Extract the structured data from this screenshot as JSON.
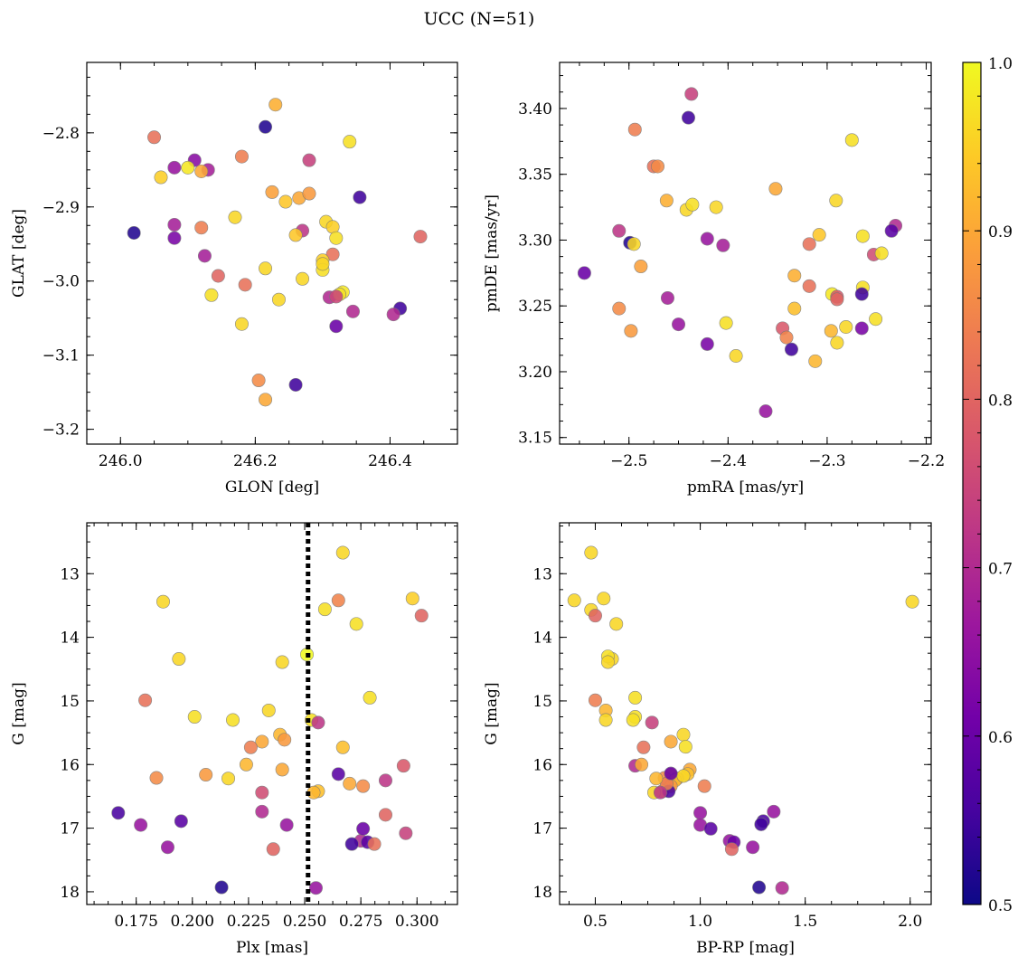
{
  "figure": {
    "title": "UCC (N=51)"
  },
  "colorbar": {
    "min": 0.5,
    "max": 1.0,
    "ticks": [
      0.5,
      0.6,
      0.7,
      0.8,
      0.9,
      1.0
    ],
    "tick_labels": [
      "0.5",
      "0.6",
      "0.7",
      "0.8",
      "0.9",
      "1.0"
    ],
    "colormap": "plasma"
  },
  "colors": {
    "plasma_stops": [
      "#0d0887",
      "#46039f",
      "#7201a8",
      "#9c179e",
      "#bd3786",
      "#d8576b",
      "#ed7953",
      "#fb9f3a",
      "#fdca26",
      "#f0f921"
    ]
  },
  "chart_data": [
    {
      "type": "scatter",
      "id": "sky",
      "xlabel": "GLON [deg]",
      "ylabel": "GLAT [deg]",
      "xlim": [
        245.95,
        246.5
      ],
      "ylim": [
        -3.22,
        -2.705
      ],
      "xticks": [
        246.0,
        246.2,
        246.4
      ],
      "xtick_labels": [
        "246.0",
        "246.2",
        "246.4"
      ],
      "yticks": [
        -2.8,
        -2.9,
        -3.0,
        -3.1,
        -3.2
      ],
      "ytick_labels": [
        "−2.8",
        "−2.9",
        "−3.0",
        "−3.1",
        "−3.2"
      ],
      "x": [
        246.23,
        246.215,
        246.05,
        246.34,
        246.08,
        246.11,
        246.13,
        246.06,
        246.1,
        246.12,
        246.18,
        246.28,
        246.225,
        246.245,
        246.265,
        246.28,
        246.355,
        246.17,
        246.02,
        246.08,
        246.12,
        246.08,
        246.305,
        246.315,
        246.27,
        246.32,
        246.26,
        246.315,
        246.3,
        246.215,
        246.125,
        246.145,
        246.135,
        246.185,
        246.3,
        246.27,
        246.235,
        246.31,
        246.33,
        246.325,
        246.345,
        246.32,
        246.415,
        246.405,
        246.445,
        246.18,
        246.205,
        246.215,
        246.26,
        246.3,
        246.32
      ],
      "y": [
        -2.762,
        -2.792,
        -2.806,
        -2.812,
        -2.847,
        -2.837,
        -2.85,
        -2.86,
        -2.847,
        -2.852,
        -2.832,
        -2.837,
        -2.88,
        -2.893,
        -2.888,
        -2.882,
        -2.887,
        -2.914,
        -2.935,
        -2.924,
        -2.928,
        -2.942,
        -2.92,
        -2.927,
        -2.932,
        -2.942,
        -2.938,
        -2.964,
        -2.972,
        -2.983,
        -2.966,
        -2.993,
        -3.019,
        -3.005,
        -2.985,
        -2.997,
        -3.025,
        -3.022,
        -3.015,
        -3.018,
        -3.041,
        -3.061,
        -3.037,
        -3.045,
        -2.94,
        -3.058,
        -3.134,
        -3.16,
        -3.14,
        -2.977,
        -3.021
      ],
      "c": [
        0.91,
        0.52,
        0.82,
        0.97,
        0.66,
        0.64,
        0.68,
        0.95,
        0.98,
        0.9,
        0.84,
        0.74,
        0.89,
        0.94,
        0.9,
        0.88,
        0.55,
        0.96,
        0.52,
        0.68,
        0.84,
        0.62,
        0.96,
        0.95,
        0.72,
        0.97,
        0.94,
        0.82,
        0.95,
        0.96,
        0.68,
        0.8,
        0.97,
        0.82,
        0.97,
        0.96,
        0.96,
        0.7,
        0.98,
        0.97,
        0.7,
        0.6,
        0.55,
        0.7,
        0.8,
        0.96,
        0.86,
        0.9,
        0.55,
        0.96,
        0.75
      ]
    },
    {
      "type": "scatter",
      "id": "pm",
      "xlabel": "pmRA [mas/yr]",
      "ylabel": "pmDE [mas/yr]",
      "xlim": [
        -2.57,
        -2.195
      ],
      "ylim": [
        3.145,
        3.435
      ],
      "xticks": [
        -2.5,
        -2.4,
        -2.3,
        -2.2
      ],
      "xtick_labels": [
        "−2.5",
        "−2.4",
        "−2.3",
        "−2.2"
      ],
      "yticks": [
        3.15,
        3.2,
        3.25,
        3.3,
        3.35,
        3.4
      ],
      "ytick_labels": [
        "3.15",
        "3.20",
        "3.25",
        "3.30",
        "3.35",
        "3.40"
      ],
      "x": [
        -2.437,
        -2.44,
        -2.494,
        -2.475,
        -2.471,
        -2.275,
        -2.352,
        -2.462,
        -2.442,
        -2.436,
        -2.412,
        -2.291,
        -2.51,
        -2.499,
        -2.495,
        -2.421,
        -2.405,
        -2.308,
        -2.264,
        -2.231,
        -2.235,
        -2.318,
        -2.264,
        -2.295,
        -2.253,
        -2.245,
        -2.488,
        -2.545,
        -2.333,
        -2.318,
        -2.29,
        -2.265,
        -2.51,
        -2.498,
        -2.461,
        -2.45,
        -2.402,
        -2.421,
        -2.392,
        -2.333,
        -2.345,
        -2.341,
        -2.336,
        -2.296,
        -2.281,
        -2.251,
        -2.29,
        -2.265,
        -2.362,
        -2.312,
        -2.29
      ],
      "y": [
        3.411,
        3.393,
        3.384,
        3.356,
        3.356,
        3.376,
        3.339,
        3.33,
        3.323,
        3.327,
        3.325,
        3.33,
        3.307,
        3.298,
        3.297,
        3.301,
        3.296,
        3.304,
        3.303,
        3.311,
        3.307,
        3.297,
        3.264,
        3.259,
        3.289,
        3.29,
        3.28,
        3.275,
        3.273,
        3.265,
        3.257,
        3.259,
        3.248,
        3.231,
        3.256,
        3.236,
        3.237,
        3.221,
        3.212,
        3.248,
        3.233,
        3.226,
        3.217,
        3.231,
        3.234,
        3.24,
        3.222,
        3.233,
        3.17,
        3.208,
        3.255
      ],
      "c": [
        0.74,
        0.55,
        0.84,
        0.82,
        0.86,
        0.97,
        0.9,
        0.91,
        0.96,
        0.97,
        0.96,
        0.96,
        0.72,
        0.52,
        0.96,
        0.66,
        0.68,
        0.94,
        0.97,
        0.7,
        0.58,
        0.82,
        0.97,
        0.98,
        0.76,
        0.97,
        0.89,
        0.6,
        0.91,
        0.82,
        0.78,
        0.55,
        0.86,
        0.88,
        0.68,
        0.66,
        0.97,
        0.62,
        0.96,
        0.93,
        0.78,
        0.85,
        0.55,
        0.92,
        0.96,
        0.97,
        0.96,
        0.62,
        0.66,
        0.92,
        0.8
      ]
    },
    {
      "type": "scatter",
      "id": "plx",
      "xlabel": "Plx [mas]",
      "ylabel": "G [mag]",
      "xlim": [
        0.153,
        0.318
      ],
      "ylim": [
        18.2,
        12.2
      ],
      "xticks": [
        0.175,
        0.2,
        0.225,
        0.25,
        0.275,
        0.3
      ],
      "xtick_labels": [
        "0.175",
        "0.200",
        "0.225",
        "0.250",
        "0.275",
        "0.300"
      ],
      "yticks": [
        13,
        14,
        15,
        16,
        17,
        18
      ],
      "ytick_labels": [
        "13",
        "14",
        "15",
        "16",
        "17",
        "18"
      ],
      "vline": 0.2515,
      "x": [
        0.267,
        0.298,
        0.187,
        0.265,
        0.259,
        0.302,
        0.273,
        0.194,
        0.24,
        0.251,
        0.179,
        0.279,
        0.201,
        0.218,
        0.234,
        0.239,
        0.253,
        0.256,
        0.231,
        0.241,
        0.226,
        0.267,
        0.184,
        0.206,
        0.216,
        0.224,
        0.24,
        0.265,
        0.27,
        0.276,
        0.286,
        0.294,
        0.256,
        0.254,
        0.167,
        0.177,
        0.195,
        0.189,
        0.231,
        0.242,
        0.236,
        0.213,
        0.255,
        0.286,
        0.295,
        0.275,
        0.271,
        0.278,
        0.281,
        0.276,
        0.231
      ],
      "y": [
        12.67,
        13.39,
        13.44,
        13.42,
        13.56,
        13.66,
        13.79,
        14.34,
        14.39,
        14.27,
        14.99,
        14.95,
        15.25,
        15.3,
        15.15,
        15.53,
        15.3,
        15.34,
        15.64,
        15.61,
        15.73,
        15.73,
        16.21,
        16.16,
        16.22,
        16.0,
        16.08,
        16.15,
        16.3,
        16.34,
        16.25,
        16.02,
        16.42,
        16.44,
        16.76,
        16.95,
        16.89,
        17.3,
        16.74,
        16.95,
        17.33,
        17.93,
        17.94,
        16.79,
        17.08,
        17.2,
        17.25,
        17.22,
        17.25,
        17.01,
        16.44
      ],
      "c": [
        0.96,
        0.95,
        0.96,
        0.85,
        0.97,
        0.8,
        0.97,
        0.96,
        0.96,
        1.0,
        0.82,
        0.97,
        0.97,
        0.97,
        0.96,
        0.92,
        0.97,
        0.72,
        0.9,
        0.88,
        0.84,
        0.93,
        0.86,
        0.88,
        0.96,
        0.92,
        0.9,
        0.58,
        0.9,
        0.86,
        0.72,
        0.78,
        0.93,
        0.92,
        0.56,
        0.66,
        0.58,
        0.66,
        0.7,
        0.66,
        0.8,
        0.52,
        0.66,
        0.8,
        0.74,
        0.7,
        0.55,
        0.58,
        0.82,
        0.6,
        0.76
      ]
    },
    {
      "type": "scatter",
      "id": "cmd",
      "xlabel": "BP-RP [mag]",
      "ylabel": "G [mag]",
      "xlim": [
        0.33,
        2.1
      ],
      "ylim": [
        18.2,
        12.2
      ],
      "xticks": [
        0.5,
        1.0,
        1.5,
        2.0
      ],
      "xtick_labels": [
        "0.5",
        "1.0",
        "1.5",
        "2.0"
      ],
      "yticks": [
        13,
        14,
        15,
        16,
        17,
        18
      ],
      "ytick_labels": [
        "13",
        "14",
        "15",
        "16",
        "17",
        "18"
      ],
      "x": [
        0.48,
        0.4,
        0.54,
        0.48,
        0.5,
        0.6,
        0.58,
        0.56,
        0.56,
        0.5,
        0.69,
        0.55,
        0.69,
        0.68,
        0.55,
        0.77,
        0.92,
        0.93,
        0.73,
        0.86,
        0.95,
        0.94,
        0.69,
        0.72,
        0.86,
        0.83,
        0.89,
        1.02,
        0.88,
        0.92,
        0.82,
        0.78,
        0.86,
        0.85,
        1.0,
        1.0,
        1.05,
        1.14,
        1.16,
        1.15,
        1.25,
        1.28,
        1.3,
        1.29,
        1.35,
        1.39,
        2.01,
        0.84,
        0.81,
        0.79,
        0.86
      ],
      "y": [
        12.67,
        13.42,
        13.39,
        13.57,
        13.66,
        13.79,
        14.34,
        14.3,
        14.39,
        14.99,
        14.95,
        15.15,
        15.25,
        15.3,
        15.3,
        15.34,
        15.53,
        15.72,
        15.73,
        15.64,
        16.08,
        16.15,
        16.02,
        16.0,
        16.16,
        16.21,
        16.22,
        16.34,
        16.25,
        16.18,
        16.42,
        16.44,
        16.34,
        16.42,
        16.76,
        16.95,
        17.01,
        17.2,
        17.22,
        17.33,
        17.3,
        17.93,
        16.89,
        16.94,
        16.74,
        17.94,
        13.44,
        16.3,
        16.44,
        16.22,
        16.14
      ],
      "c": [
        0.96,
        0.96,
        0.96,
        0.96,
        0.8,
        0.96,
        0.96,
        0.97,
        0.96,
        0.84,
        0.97,
        0.92,
        0.97,
        0.97,
        0.96,
        0.74,
        0.96,
        0.97,
        0.82,
        0.9,
        0.9,
        0.93,
        0.7,
        0.9,
        0.88,
        0.86,
        0.9,
        0.84,
        0.92,
        0.96,
        0.92,
        0.96,
        0.88,
        0.56,
        0.66,
        0.66,
        0.58,
        0.66,
        0.6,
        0.8,
        0.66,
        0.52,
        0.56,
        0.55,
        0.66,
        0.7,
        0.96,
        0.84,
        0.72,
        0.92,
        0.6
      ]
    }
  ]
}
